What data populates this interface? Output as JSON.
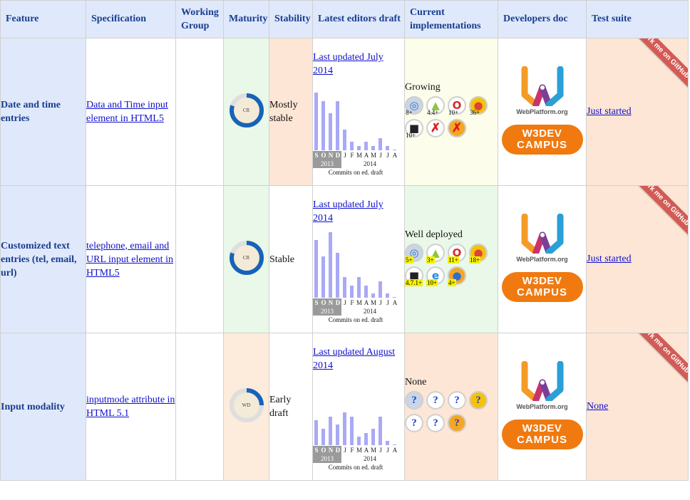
{
  "headers": {
    "feature": "Feature",
    "specification": "Specification",
    "working_group": "Working Group",
    "maturity": "Maturity",
    "stability": "Stability",
    "latest_draft": "Latest editors draft",
    "current_impl": "Current implementations",
    "dev_doc": "Developers doc",
    "test_suite": "Test suite"
  },
  "common": {
    "months": [
      "S",
      "O",
      "N",
      "D",
      "J",
      "F",
      "M",
      "A",
      "M",
      "J",
      "J",
      "A"
    ],
    "year_2013": "2013",
    "year_2014": "2014",
    "commits_caption": "Commits on ed. draft",
    "webplatform_text": "WebPlatform.org",
    "w3dev_line1": "W3DEV",
    "w3dev_line2": "CAMPUS",
    "ribbon_text": "Fork me on GitHub"
  },
  "colors": {
    "header_bg": "#dfe9fb",
    "header_text": "#1a3d8f",
    "green_bg": "#e9f8e8",
    "peach_bg": "#fde6d6",
    "pale_yellow_bg": "#fcfdea",
    "bar_color": "#a9a9f7",
    "ring_color": "#1763b8",
    "w3dev_orange": "#f07a10",
    "ribbon_red": "#d35a55"
  },
  "rows": [
    {
      "feature": "Date and time entries",
      "spec_link": "Data and Time input element in HTML5",
      "maturity": "CR",
      "maturity_fraction": 0.8,
      "stability": "Mostly stable",
      "draft_link": "Last updated July 2014",
      "commits": [
        14,
        12,
        9,
        12,
        5,
        2,
        1,
        2,
        1,
        3,
        1,
        0
      ],
      "impl_status": "Growing",
      "browsers": [
        {
          "icon": "safari-icon",
          "version": "8+",
          "highlight": false
        },
        {
          "icon": "android-icon",
          "version": "4.4+",
          "highlight": false
        },
        {
          "icon": "opera-icon",
          "version": "10+",
          "highlight": false
        },
        {
          "icon": "chrome-icon",
          "version": "36+",
          "highlight": false
        },
        {
          "icon": "blackberry-icon",
          "version": "10+",
          "highlight": false
        },
        {
          "icon": "ie-icon",
          "version": "✗",
          "highlight": false,
          "state": "no"
        },
        {
          "icon": "firefox-icon",
          "version": "✗",
          "highlight": false,
          "state": "no"
        }
      ],
      "test_link": "Just started"
    },
    {
      "feature": "Customized text entries (tel, email, url)",
      "spec_link": "telephone, email and URL input element in HTML5",
      "maturity": "CR",
      "maturity_fraction": 0.8,
      "stability": "Stable",
      "draft_link": "Last updated July 2014",
      "commits": [
        14,
        10,
        16,
        11,
        5,
        3,
        5,
        3,
        1,
        4,
        1,
        0
      ],
      "impl_status": "Well deployed",
      "browsers": [
        {
          "icon": "safari-icon",
          "version": "5+",
          "highlight": true
        },
        {
          "icon": "android-icon",
          "version": "3+",
          "highlight": true
        },
        {
          "icon": "opera-icon",
          "version": "11+",
          "highlight": true
        },
        {
          "icon": "chrome-icon",
          "version": "18+",
          "highlight": true
        },
        {
          "icon": "blackberry-icon",
          "version": "4.7.1+",
          "highlight": true
        },
        {
          "icon": "ie-icon",
          "version": "10+",
          "highlight": true
        },
        {
          "icon": "firefox-icon",
          "version": "4+",
          "highlight": true
        }
      ],
      "test_link": "Just started"
    },
    {
      "feature": "Input modality",
      "spec_link": "inputmode attribute in HTML 5.1",
      "maturity": "WD",
      "maturity_fraction": 0.25,
      "stability": "Early draft",
      "draft_link": "Last updated August 2014",
      "commits": [
        6,
        4,
        7,
        5,
        8,
        7,
        2,
        3,
        4,
        7,
        1,
        0
      ],
      "impl_status": "None",
      "browsers": [
        {
          "icon": "safari-icon",
          "version": "?",
          "highlight": false,
          "state": "unknown"
        },
        {
          "icon": "android-icon",
          "version": "?",
          "highlight": false,
          "state": "unknown"
        },
        {
          "icon": "opera-icon",
          "version": "?",
          "highlight": false,
          "state": "unknown"
        },
        {
          "icon": "chrome-icon",
          "version": "?",
          "highlight": false,
          "state": "unknown"
        },
        {
          "icon": "blackberry-icon",
          "version": "?",
          "highlight": false,
          "state": "unknown"
        },
        {
          "icon": "ie-icon",
          "version": "?",
          "highlight": false,
          "state": "unknown"
        },
        {
          "icon": "firefox-icon",
          "version": "?",
          "highlight": false,
          "state": "unknown"
        }
      ],
      "test_link": "None"
    }
  ]
}
